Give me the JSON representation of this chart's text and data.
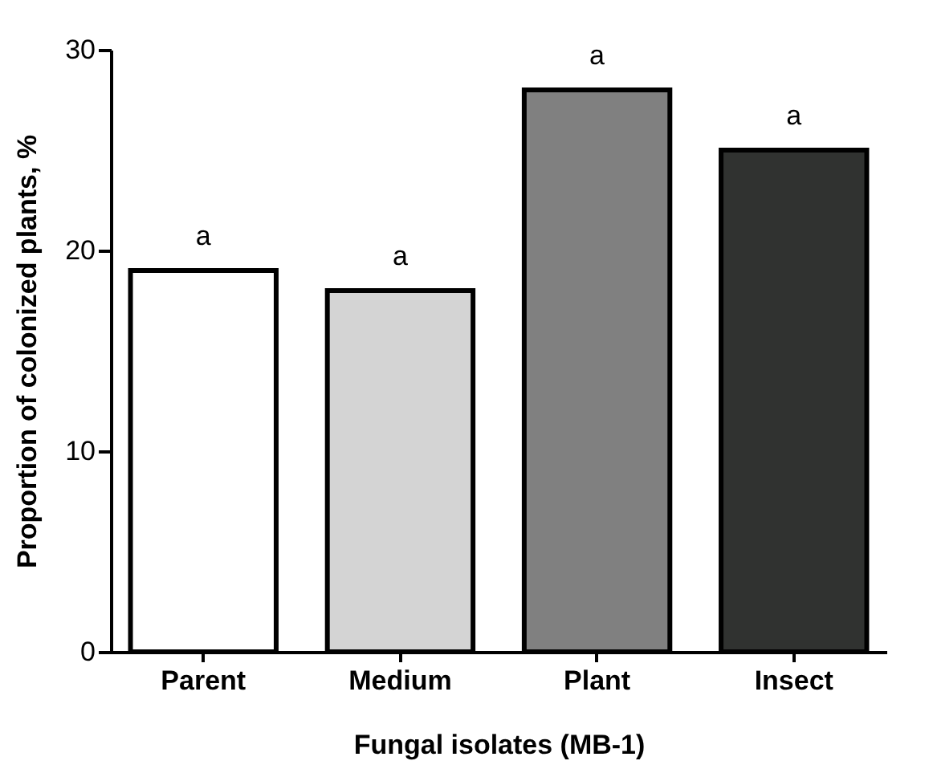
{
  "chart_data": {
    "type": "bar",
    "xlabel": "Fungal isolates (MB-1)",
    "ylabel": "Proportion of colonized plants, %",
    "categories": [
      "Parent",
      "Medium",
      "Plant",
      "Insect"
    ],
    "values": [
      19,
      18,
      28,
      25
    ],
    "colors": [
      "#ffffff",
      "#d4d4d4",
      "#808080",
      "#303230"
    ],
    "ylim": [
      0,
      30
    ],
    "yticks": [
      0,
      10,
      20,
      30
    ],
    "grid": false,
    "annotations": [
      {
        "text": "a",
        "x": "Parent",
        "y": 19
      },
      {
        "text": "a",
        "x": "Medium",
        "y": 18
      },
      {
        "text": "a",
        "x": "Plant",
        "y": 28
      },
      {
        "text": "a",
        "x": "Insect",
        "y": 25
      }
    ]
  }
}
